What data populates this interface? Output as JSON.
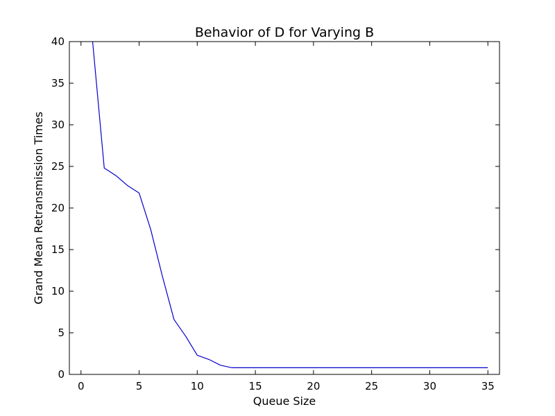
{
  "chart_data": {
    "type": "line",
    "title": "Behavior of D for Varying B",
    "xlabel": "Queue Size",
    "ylabel": "Grand Mean Retransmission Times",
    "xlim": [
      -1,
      36
    ],
    "ylim": [
      0,
      40
    ],
    "xticks": [
      0,
      5,
      10,
      15,
      20,
      25,
      30,
      35
    ],
    "yticks": [
      0,
      5,
      10,
      15,
      20,
      25,
      30,
      35,
      40
    ],
    "xtick_labels": [
      "0",
      "5",
      "10",
      "15",
      "20",
      "25",
      "30",
      "35"
    ],
    "ytick_labels": [
      "0",
      "5",
      "10",
      "15",
      "20",
      "25",
      "30",
      "35",
      "40"
    ],
    "grid": false,
    "legend": "none",
    "line_color": "#0000cc",
    "series": [
      {
        "x": [
          1,
          2,
          3,
          4,
          5,
          6,
          7,
          8,
          9,
          10,
          11,
          12,
          13,
          14,
          15,
          16,
          17,
          18,
          19,
          20,
          21,
          22,
          23,
          24,
          25,
          26,
          27,
          28,
          29,
          30,
          31,
          32,
          33,
          34,
          35
        ],
        "values": [
          40.0,
          24.8,
          23.9,
          22.7,
          21.8,
          17.4,
          11.8,
          6.6,
          4.6,
          2.3,
          1.8,
          1.1,
          0.8,
          0.8,
          0.8,
          0.8,
          0.8,
          0.8,
          0.8,
          0.8,
          0.8,
          0.8,
          0.8,
          0.8,
          0.8,
          0.8,
          0.8,
          0.8,
          0.8,
          0.8,
          0.8,
          0.8,
          0.8,
          0.8,
          0.8
        ]
      }
    ]
  }
}
